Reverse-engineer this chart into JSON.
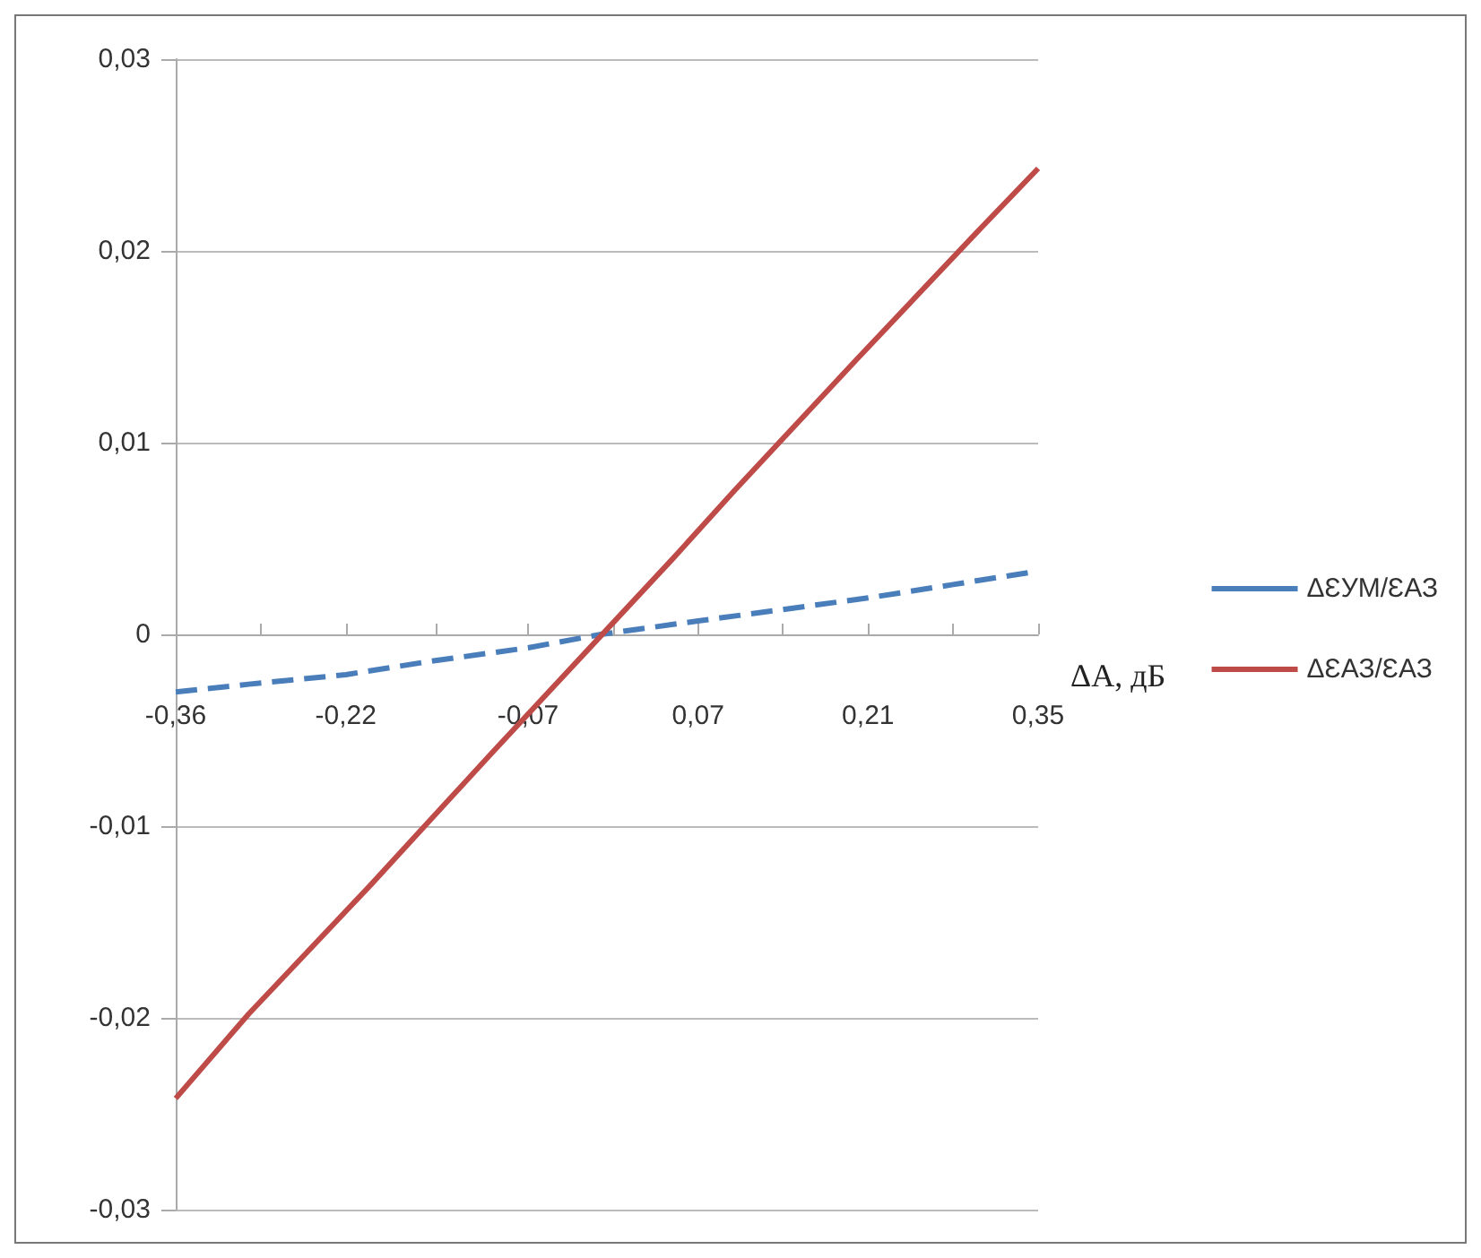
{
  "chart_data": {
    "type": "line",
    "xlabel": "ΔA, дБ",
    "xlim": [
      -0.36,
      0.35
    ],
    "xticks": [
      {
        "value": -0.36,
        "label": "-0,36"
      },
      {
        "value": -0.29,
        "label": null
      },
      {
        "value": -0.22,
        "label": "-0,22"
      },
      {
        "value": -0.145,
        "label": null
      },
      {
        "value": -0.07,
        "label": "-0,07"
      },
      {
        "value": 0,
        "label": null
      },
      {
        "value": 0.07,
        "label": "0,07"
      },
      {
        "value": 0.14,
        "label": null
      },
      {
        "value": 0.21,
        "label": "0,21"
      },
      {
        "value": 0.28,
        "label": null
      },
      {
        "value": 0.35,
        "label": "0,35"
      }
    ],
    "ylim": [
      -0.03,
      0.03
    ],
    "yticks": [
      {
        "value": -0.03,
        "label": "-0,03"
      },
      {
        "value": -0.02,
        "label": "-0,02"
      },
      {
        "value": -0.01,
        "label": "-0,01"
      },
      {
        "value": 0,
        "label": "0"
      },
      {
        "value": 0.01,
        "label": "0,01"
      },
      {
        "value": 0.02,
        "label": "0,02"
      },
      {
        "value": 0.03,
        "label": "0,03"
      }
    ],
    "grid": "y",
    "legend": "right",
    "marker": "none",
    "series": [
      {
        "name": "ΔƐУМ/ƐАЗ",
        "color": "#4a7ebb",
        "line_style": "dashed",
        "x": [
          -0.36,
          -0.3,
          -0.22,
          -0.15,
          -0.07,
          -0.01,
          0.07,
          0.14,
          0.21,
          0.28,
          0.35
        ],
        "values": [
          -0.003,
          -0.0026,
          -0.0021,
          -0.0014,
          -0.0007,
          0,
          0.0007,
          0.0013,
          0.0019,
          0.0026,
          0.0033
        ]
      },
      {
        "name": "ΔƐАЗ/ƐАЗ",
        "color": "#be4b48",
        "line_style": "solid",
        "x": [
          -0.36,
          -0.3,
          -0.2,
          -0.1,
          0,
          0.05,
          0.1,
          0.2,
          0.3,
          0.35
        ],
        "values": [
          -0.0242,
          -0.0198,
          -0.0131,
          -0.0062,
          0.0006,
          0.004,
          0.0075,
          0.0143,
          0.021,
          0.0243
        ]
      }
    ]
  }
}
